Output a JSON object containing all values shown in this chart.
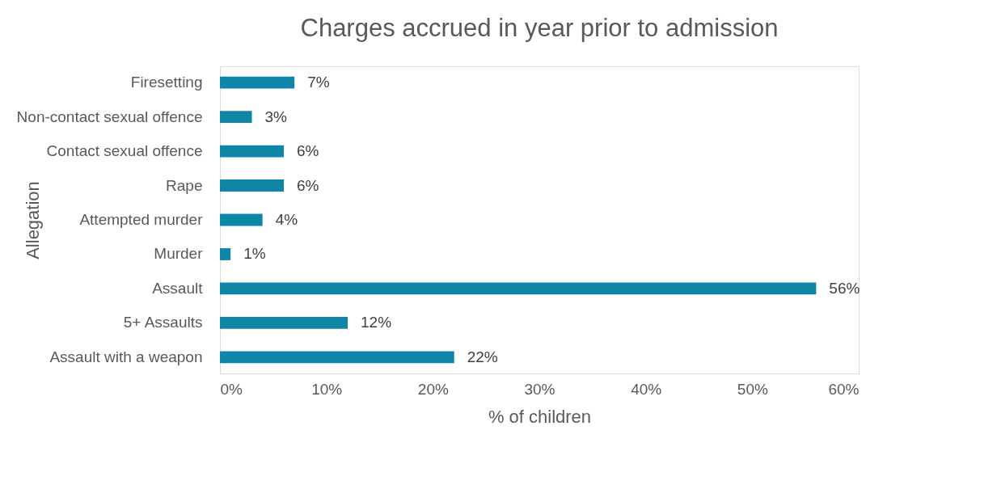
{
  "chart_data": {
    "type": "bar",
    "orientation": "horizontal",
    "title": "Charges accrued in year prior to admission",
    "xlabel": "% of children",
    "ylabel": "Allegation",
    "categories": [
      "Firesetting",
      "Non-contact sexual offence",
      "Contact sexual offence",
      "Rape",
      "Attempted murder",
      "Murder",
      "Assault",
      "5+ Assaults",
      "Assault with a weapon"
    ],
    "values": [
      7,
      3,
      6,
      6,
      4,
      1,
      56,
      12,
      22
    ],
    "value_labels": [
      "7%",
      "3%",
      "6%",
      "6%",
      "4%",
      "1%",
      "56%",
      "12%",
      "22%"
    ],
    "color": "#0f86a8",
    "xlim": [
      0,
      60
    ],
    "xticks": [
      {
        "value": 0,
        "label": "0%"
      },
      {
        "value": 10,
        "label": "10%"
      },
      {
        "value": 20,
        "label": "20%"
      },
      {
        "value": 30,
        "label": "30%"
      },
      {
        "value": 40,
        "label": "40%"
      },
      {
        "value": 50,
        "label": "50%"
      },
      {
        "value": 60,
        "label": "60%"
      }
    ],
    "grid": false
  }
}
